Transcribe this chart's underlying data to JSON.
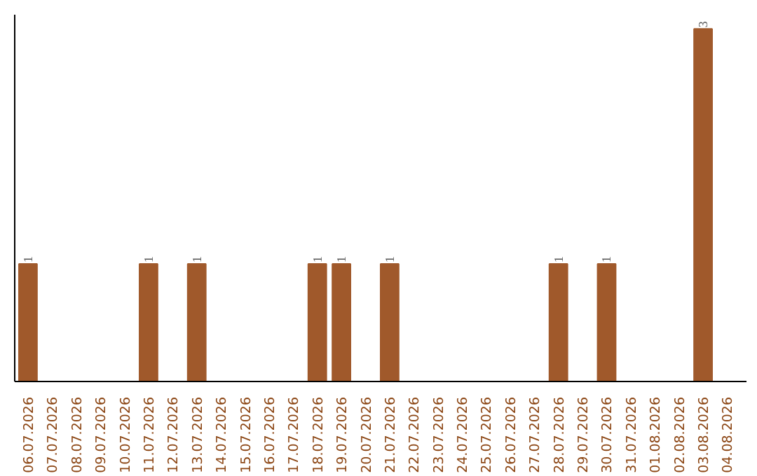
{
  "chart_data": {
    "type": "bar",
    "categories": [
      "06.07.2026",
      "07.07.2026",
      "08.07.2026",
      "09.07.2026",
      "10.07.2026",
      "11.07.2026",
      "12.07.2026",
      "13.07.2026",
      "14.07.2026",
      "15.07.2026",
      "16.07.2026",
      "17.07.2026",
      "18.07.2026",
      "19.07.2026",
      "20.07.2026",
      "21.07.2026",
      "22.07.2026",
      "23.07.2026",
      "24.07.2026",
      "25.07.2026",
      "26.07.2026",
      "27.07.2026",
      "28.07.2026",
      "29.07.2026",
      "30.07.2026",
      "31.07.2026",
      "01.08.2026",
      "02.08.2026",
      "03.08.2026",
      "04.08.2026"
    ],
    "values": [
      1,
      0,
      0,
      0,
      0,
      1,
      0,
      1,
      0,
      0,
      0,
      0,
      1,
      1,
      0,
      1,
      0,
      0,
      0,
      0,
      0,
      0,
      1,
      0,
      1,
      0,
      0,
      0,
      3,
      0
    ],
    "value_labels": [
      "1",
      null,
      null,
      null,
      null,
      "1",
      null,
      "1",
      null,
      null,
      null,
      null,
      "1",
      "1",
      null,
      "1",
      null,
      null,
      null,
      null,
      null,
      null,
      "1",
      null,
      "1",
      null,
      null,
      null,
      "3",
      null
    ],
    "color": "#a0592b",
    "grid": false
  }
}
